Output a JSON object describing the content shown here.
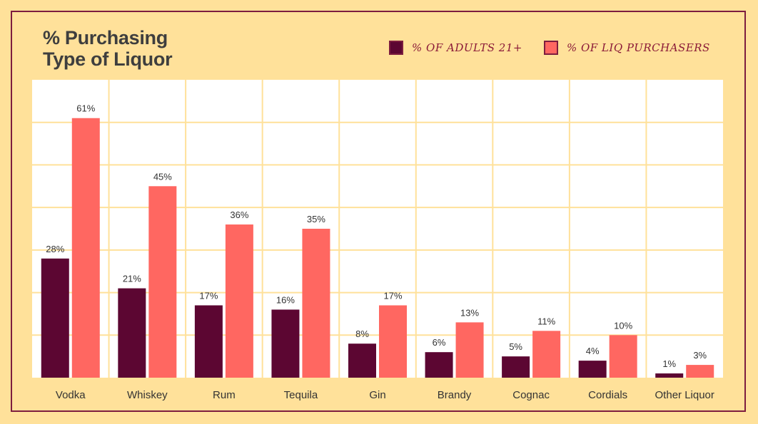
{
  "chart_data": {
    "type": "bar",
    "title": "% Purchasing\nType of Liquor",
    "categories": [
      "Vodka",
      "Whiskey",
      "Rum",
      "Tequila",
      "Gin",
      "Brandy",
      "Cognac",
      "Cordials",
      "Other Liquor"
    ],
    "series": [
      {
        "name": "% OF ADULTS 21+",
        "color": "#5c0632",
        "values": [
          28,
          21,
          17,
          16,
          8,
          6,
          5,
          4,
          1
        ],
        "labels": [
          "28%",
          "21%",
          "17%",
          "16%",
          "8%",
          "6%",
          "5%",
          "4%",
          "1%"
        ]
      },
      {
        "name": "% OF LIQ PURCHASERS",
        "color": "#ff6761",
        "values": [
          61,
          45,
          36,
          35,
          17,
          13,
          11,
          10,
          3
        ],
        "labels": [
          "61%",
          "45%",
          "36%",
          "35%",
          "17%",
          "13%",
          "11%",
          "10%",
          "3%"
        ]
      }
    ],
    "ylim": [
      0,
      70
    ],
    "grid": true,
    "legend_position": "top-right"
  },
  "colors": {
    "background": "#ffe19a",
    "plot_background": "#ffffff",
    "gridline": "#ffe19a",
    "frame": "#7d1d3f"
  }
}
